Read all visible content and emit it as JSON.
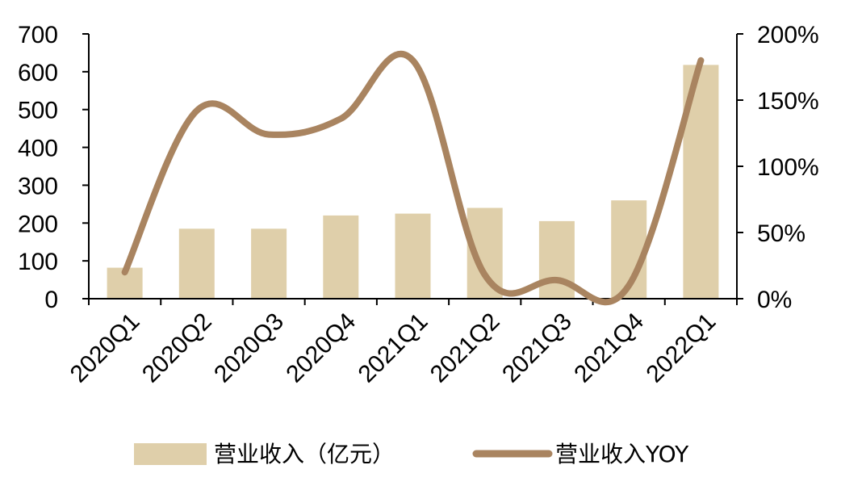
{
  "chart_data": {
    "type": "bar",
    "categories": [
      "2020Q1",
      "2020Q2",
      "2020Q3",
      "2020Q4",
      "2021Q1",
      "2021Q2",
      "2021Q3",
      "2021Q4",
      "2022Q1"
    ],
    "series": [
      {
        "name": "营业收入（亿元）",
        "type": "bar",
        "axis": "left",
        "color": "#dfcfaa",
        "values": [
          82,
          185,
          185,
          220,
          225,
          240,
          205,
          260,
          618
        ]
      },
      {
        "name": "营业收入YOY",
        "type": "line",
        "axis": "right",
        "smooth": true,
        "color": "#a98460",
        "values": [
          20,
          142,
          124,
          136,
          180,
          18,
          14,
          10,
          180
        ]
      }
    ],
    "y_left": {
      "min": 0,
      "max": 700,
      "ticks": [
        0,
        100,
        200,
        300,
        400,
        500,
        600,
        700
      ]
    },
    "y_right": {
      "min": 0,
      "max": 200,
      "unit": "%",
      "ticks": [
        0,
        50,
        100,
        150,
        200
      ],
      "tick_labels": [
        "0%",
        "50%",
        "100%",
        "150%",
        "200%"
      ]
    },
    "grid": false,
    "legend_position": "bottom"
  }
}
